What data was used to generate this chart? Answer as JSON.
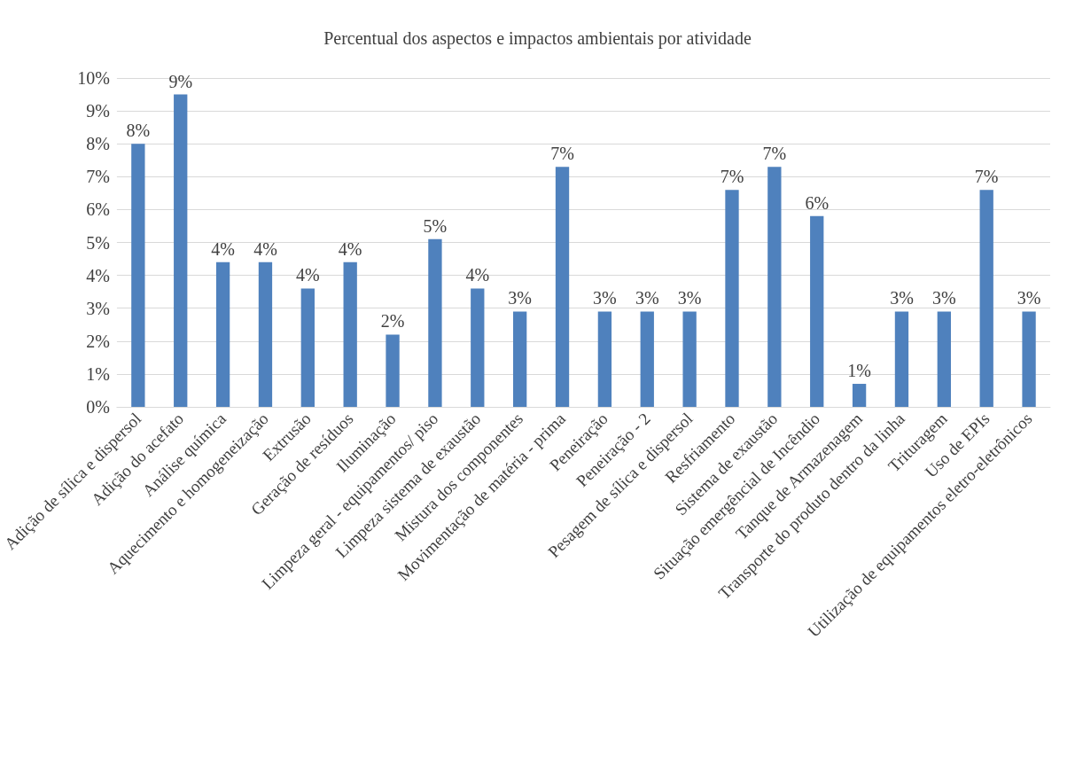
{
  "chart_data": {
    "type": "bar",
    "title": "Percentual dos aspectos e impactos ambientais por atividade",
    "categories": [
      "Adição de sílica e dispersol",
      "Adição do acefato",
      "Análise química",
      "Aquecimento e homogeneização",
      "Extrusão",
      "Geração de resíduos",
      "Iluminação",
      "Limpeza geral - equipamentos/ piso",
      "Limpeza sistema de exaustão",
      "Mistura dos componentes",
      "Movimentação de matéria - prima",
      "Peneiração",
      "Peneiração - 2",
      "Pesagem de sílica e dispersol",
      "Resfriamento",
      "Sistema de exaustão",
      "Situação emergêncial de Incêndio",
      "Tanque de Armazenagem",
      "Transporte do produto dentro da linha",
      "Trituragem",
      "Uso de EPIs",
      "Utilização de equipamentos eletro-eletrônicos"
    ],
    "values": [
      8.0,
      9.5,
      4.4,
      4.4,
      3.6,
      4.4,
      2.2,
      5.1,
      3.6,
      2.9,
      7.3,
      2.9,
      2.9,
      2.9,
      6.6,
      7.3,
      5.8,
      0.7,
      2.9,
      2.9,
      6.6,
      2.9
    ],
    "value_labels": [
      "8%",
      "9%",
      "4%",
      "4%",
      "4%",
      "4%",
      "2%",
      "5%",
      "4%",
      "3%",
      "7%",
      "3%",
      "3%",
      "3%",
      "7%",
      "7%",
      "6%",
      "1%",
      "3%",
      "3%",
      "7%",
      "3%"
    ],
    "color": "#4f81bd",
    "ylim": [
      0,
      10
    ],
    "yticks": [
      {
        "value": 0,
        "label": "0%"
      },
      {
        "value": 1,
        "label": "1%"
      },
      {
        "value": 2,
        "label": "2%"
      },
      {
        "value": 3,
        "label": "3%"
      },
      {
        "value": 4,
        "label": "4%"
      },
      {
        "value": 5,
        "label": "5%"
      },
      {
        "value": 6,
        "label": "6%"
      },
      {
        "value": 7,
        "label": "7%"
      },
      {
        "value": 8,
        "label": "8%"
      },
      {
        "value": 9,
        "label": "9%"
      },
      {
        "value": 10,
        "label": "10%"
      }
    ],
    "grid": "y"
  }
}
